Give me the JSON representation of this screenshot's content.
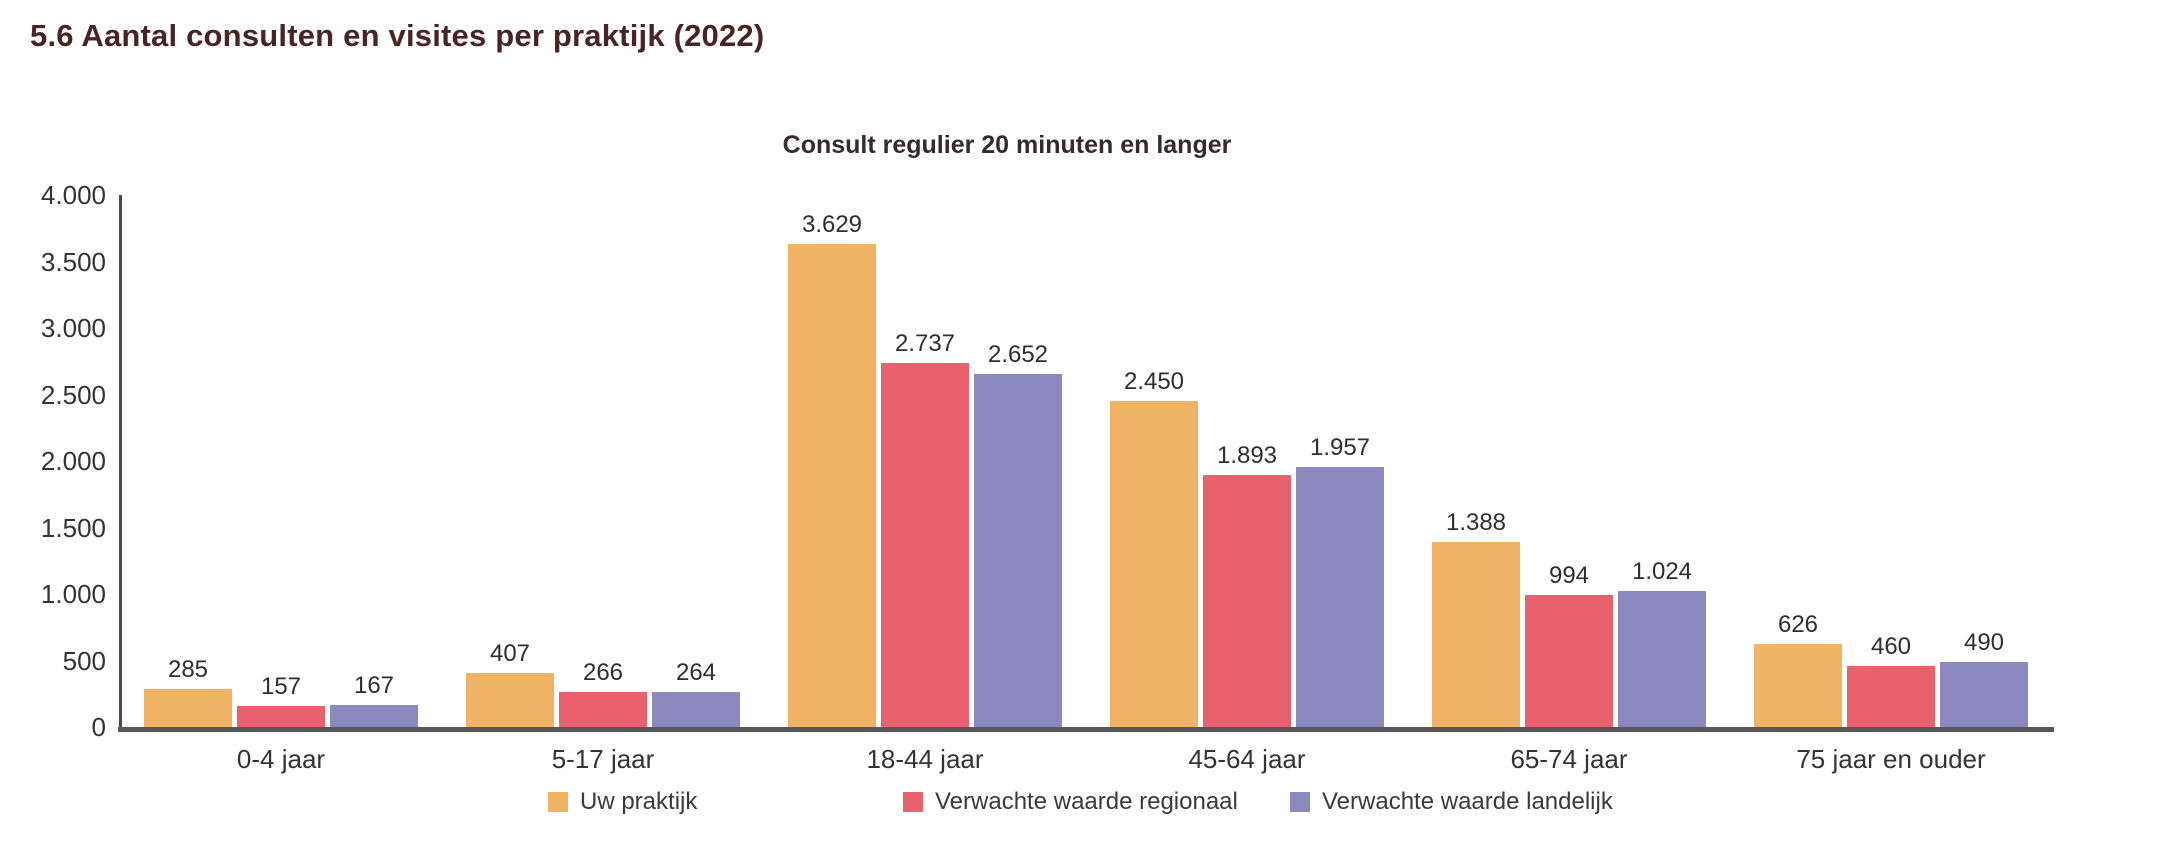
{
  "page_title": "5.6 Aantal consulten en visites per praktijk (2022)",
  "colors": {
    "page_title_color": "#4a2425",
    "chart_title_color": "#382a2a",
    "axis_text_color": "#333333",
    "axis_line_color": "#4a4a4c",
    "baseline_color": "#58585a",
    "series_orange": "#f0b264",
    "series_red": "#e8616d",
    "series_purple": "#8c89be"
  },
  "chart_data": {
    "type": "bar",
    "title": "Consult regulier 20 minuten en langer",
    "categories": [
      "0-4 jaar",
      "5-17 jaar",
      "18-44 jaar",
      "45-64 jaar",
      "65-74 jaar",
      "75 jaar en ouder"
    ],
    "series": [
      {
        "name": "Uw praktijk",
        "color": "#f0b264",
        "values": [
          285,
          407,
          3629,
          2450,
          1388,
          626
        ]
      },
      {
        "name": "Verwachte waarde regionaal",
        "color": "#e8616d",
        "values": [
          157,
          266,
          2737,
          1893,
          994,
          460
        ]
      },
      {
        "name": "Verwachte waarde landelijk",
        "color": "#8c89be",
        "values": [
          167,
          264,
          2652,
          1957,
          1024,
          490
        ]
      }
    ],
    "value_label_format": "dutch-thousands-dot",
    "y_ticks": [
      "0",
      "500",
      "1.000",
      "1.500",
      "2.000",
      "2.500",
      "3.000",
      "3.500",
      "4.000"
    ],
    "ylim": [
      0,
      4000
    ],
    "grid": false,
    "legend_position": "bottom",
    "value_labels_shown": true
  }
}
